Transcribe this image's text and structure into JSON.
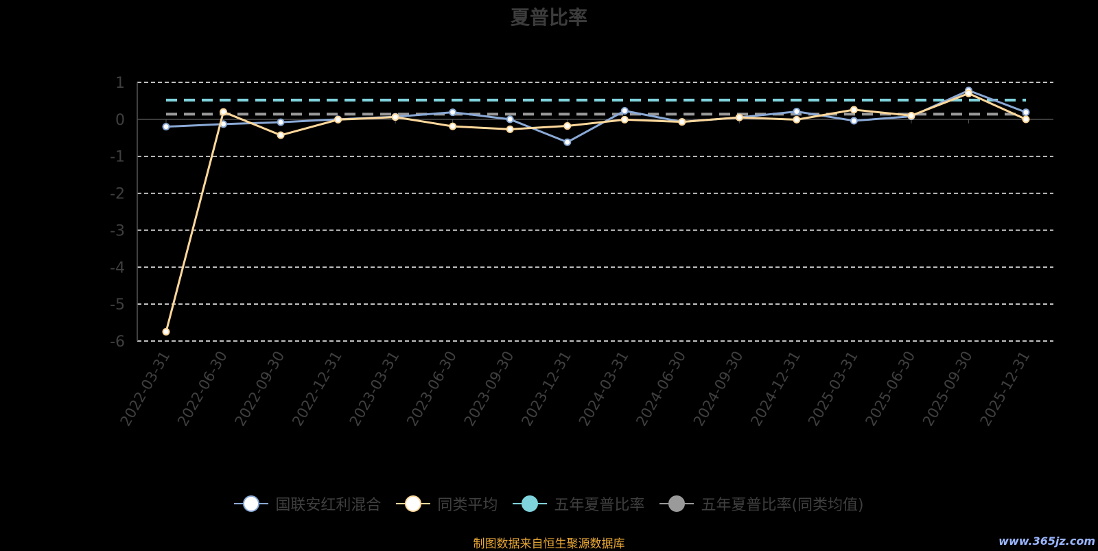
{
  "chart_data": {
    "type": "line",
    "title": "夏普比率",
    "categories": [
      "2022-03-31",
      "2022-06-30",
      "2022-09-30",
      "2022-12-31",
      "2023-03-31",
      "2023-06-30",
      "2023-09-30",
      "2023-12-31",
      "2024-03-31",
      "2024-06-30",
      "2024-09-30",
      "2024-12-31",
      "2025-03-31",
      "2025-06-30",
      "2025-09-30",
      "2025-12-31"
    ],
    "ylim": [
      -6,
      1
    ],
    "yticks": [
      1,
      0,
      -1,
      -2,
      -3,
      -4,
      -5,
      -6
    ],
    "grid": true,
    "legend_position": "bottom",
    "series": [
      {
        "name": "国联安红利混合",
        "color": "#8aa9d6",
        "values": [
          -0.2,
          -0.13,
          -0.08,
          0.0,
          0.07,
          0.19,
          0.0,
          -0.62,
          0.23,
          -0.07,
          0.05,
          0.21,
          -0.04,
          0.08,
          0.78,
          0.19
        ]
      },
      {
        "name": "同类平均",
        "color": "#ffd89b",
        "values": [
          -5.75,
          0.2,
          -0.43,
          -0.01,
          0.06,
          -0.19,
          -0.27,
          -0.18,
          -0.01,
          -0.07,
          0.05,
          -0.01,
          0.26,
          0.1,
          0.7,
          0.0
        ]
      },
      {
        "name": "五年夏普比率",
        "color": "#7fd3dc",
        "dashed": true,
        "value": 0.52
      },
      {
        "name": "五年夏普比率(同类均值)",
        "color": "#9a9a9a",
        "dashed": true,
        "value": 0.14
      }
    ]
  },
  "source_note": "制图数据来自恒生聚源数据库",
  "watermark": "www.365jz.com"
}
